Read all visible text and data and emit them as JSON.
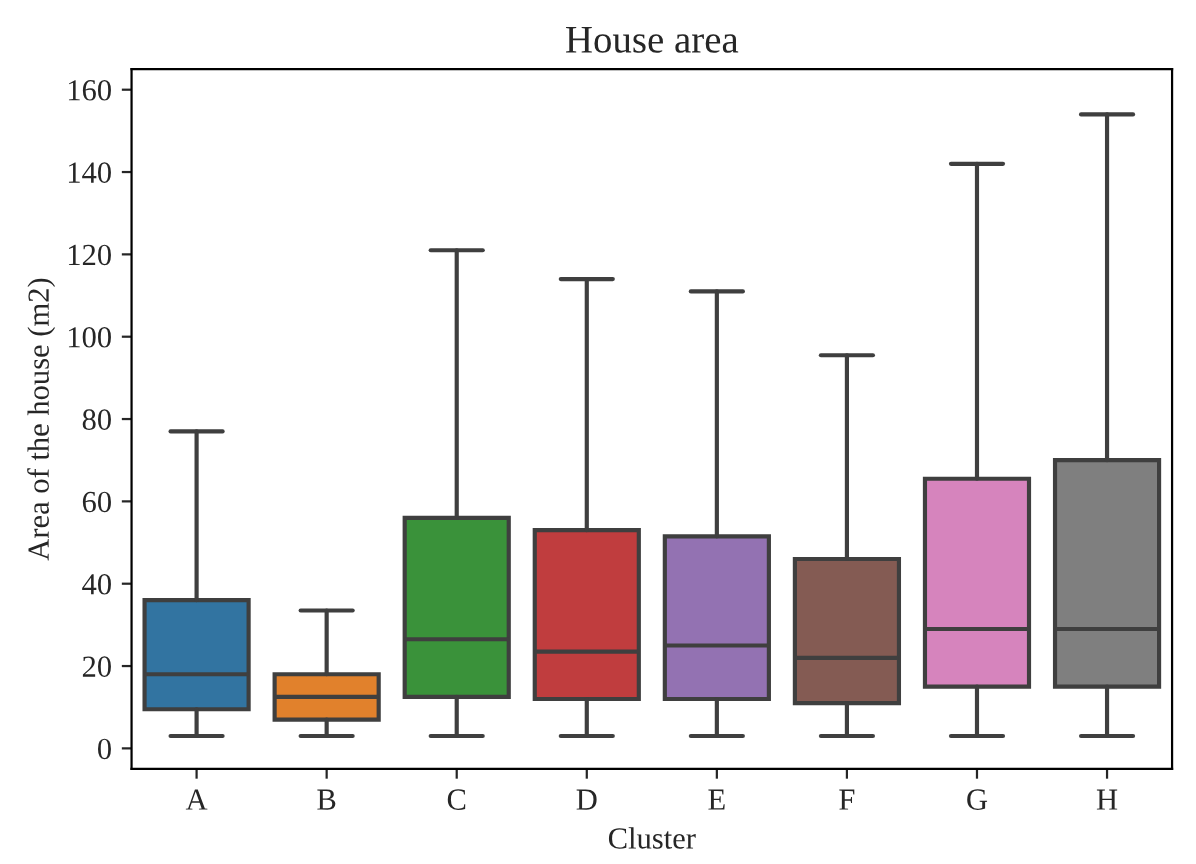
{
  "chart_data": {
    "type": "box",
    "title": "House area",
    "xlabel": "Cluster",
    "ylabel": "Area of the house (m2)",
    "categories": [
      "A",
      "B",
      "C",
      "D",
      "E",
      "F",
      "G",
      "H"
    ],
    "boxes": [
      {
        "low": 3,
        "q1": 9.5,
        "median": 18,
        "q3": 36,
        "high": 77
      },
      {
        "low": 3,
        "q1": 7,
        "median": 12.5,
        "q3": 18,
        "high": 33.5
      },
      {
        "low": 3,
        "q1": 12.5,
        "median": 26.5,
        "q3": 56,
        "high": 121
      },
      {
        "low": 3,
        "q1": 12,
        "median": 23.5,
        "q3": 53,
        "high": 114
      },
      {
        "low": 3,
        "q1": 12,
        "median": 25,
        "q3": 51.5,
        "high": 111
      },
      {
        "low": 3,
        "q1": 11,
        "median": 22,
        "q3": 46,
        "high": 95.5
      },
      {
        "low": 3,
        "q1": 15,
        "median": 29,
        "q3": 65.5,
        "high": 142
      },
      {
        "low": 3,
        "q1": 15,
        "median": 29,
        "q3": 70,
        "high": 154
      }
    ],
    "colors": [
      "#3274a1",
      "#e1812c",
      "#3a923a",
      "#c03d3e",
      "#9372b2",
      "#845b53",
      "#d684bd",
      "#7f7f7f"
    ],
    "ylim": [
      -5,
      165
    ],
    "yticks": [
      0,
      20,
      40,
      60,
      80,
      100,
      120,
      140,
      160
    ],
    "grid": false
  }
}
